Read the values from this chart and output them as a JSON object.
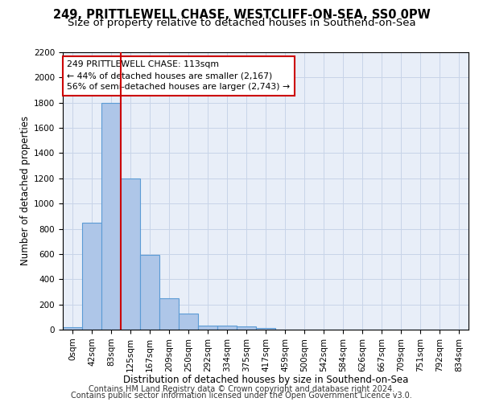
{
  "title1": "249, PRITTLEWELL CHASE, WESTCLIFF-ON-SEA, SS0 0PW",
  "title2": "Size of property relative to detached houses in Southend-on-Sea",
  "xlabel": "Distribution of detached houses by size in Southend-on-Sea",
  "ylabel": "Number of detached properties",
  "footnote1": "Contains HM Land Registry data © Crown copyright and database right 2024.",
  "footnote2": "Contains public sector information licensed under the Open Government Licence v3.0.",
  "bar_labels": [
    "0sqm",
    "42sqm",
    "83sqm",
    "125sqm",
    "167sqm",
    "209sqm",
    "250sqm",
    "292sqm",
    "334sqm",
    "375sqm",
    "417sqm",
    "459sqm",
    "500sqm",
    "542sqm",
    "584sqm",
    "626sqm",
    "667sqm",
    "709sqm",
    "751sqm",
    "792sqm",
    "834sqm"
  ],
  "bar_values": [
    20,
    845,
    1800,
    1200,
    590,
    250,
    130,
    35,
    35,
    25,
    10,
    0,
    0,
    0,
    0,
    0,
    0,
    0,
    0,
    0,
    0
  ],
  "bar_color": "#aec6e8",
  "bar_edge_color": "#5b9bd5",
  "grid_color": "#c8d4e8",
  "background_color": "#e8eef8",
  "vline_color": "#cc0000",
  "vline_pos": 2.5,
  "annotation_line1": "249 PRITTLEWELL CHASE: 113sqm",
  "annotation_line2": "← 44% of detached houses are smaller (2,167)",
  "annotation_line3": "56% of semi-detached houses are larger (2,743) →",
  "annotation_box_color": "#ffffff",
  "annotation_box_edge": "#cc0000",
  "ylim": [
    0,
    2200
  ],
  "yticks": [
    0,
    200,
    400,
    600,
    800,
    1000,
    1200,
    1400,
    1600,
    1800,
    2000,
    2200
  ],
  "title1_fontsize": 10.5,
  "title2_fontsize": 9.5,
  "tick_fontsize": 7.5,
  "xlabel_fontsize": 8.5,
  "ylabel_fontsize": 8.5,
  "footnote_fontsize": 7.0
}
